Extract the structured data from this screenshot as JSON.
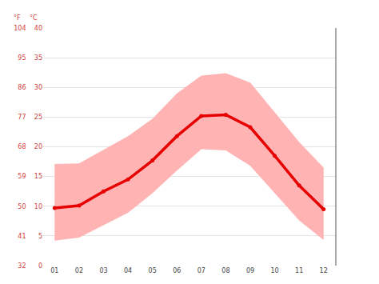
{
  "chart_data": {
    "type": "line",
    "categories": [
      "01",
      "02",
      "03",
      "04",
      "05",
      "06",
      "07",
      "08",
      "09",
      "10",
      "11",
      "12"
    ],
    "values": [
      9.7,
      10.1,
      12.5,
      14.5,
      17.7,
      21.8,
      25.2,
      25.4,
      23.3,
      18.5,
      13.5,
      9.5
    ],
    "band": {
      "upper": [
        17.1,
        17.2,
        19.5,
        21.8,
        24.7,
        29.0,
        32.0,
        32.4,
        30.8,
        25.8,
        20.8,
        16.5
      ],
      "lower": [
        4.2,
        4.7,
        6.8,
        8.9,
        12.2,
        16.0,
        19.6,
        19.4,
        16.8,
        12.2,
        7.6,
        4.3
      ]
    },
    "color": "#e60000",
    "band_color": "#ffb3b3",
    "marker": "circle",
    "ylabel": "°C",
    "ylim": [
      0,
      40
    ],
    "yticks": [
      0,
      5,
      10,
      15,
      20,
      25,
      30,
      35,
      40
    ],
    "y2label": "°F",
    "y2lim": [
      32,
      104
    ],
    "y2ticks": [
      32,
      41,
      50,
      59,
      68,
      77,
      86,
      95,
      104
    ],
    "grid": true
  }
}
